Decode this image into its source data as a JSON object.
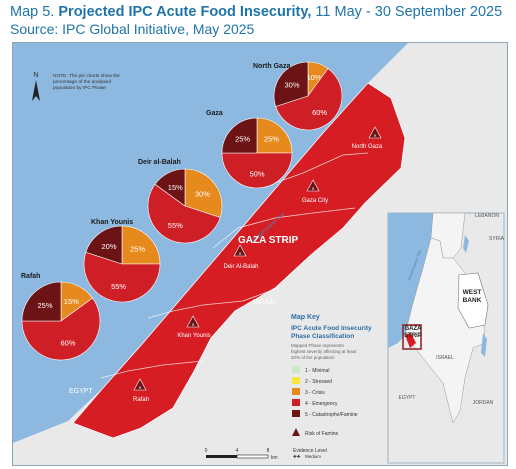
{
  "header": {
    "map_number": "Map 5.",
    "title": "Projected IPC Acute Food Insecurity,",
    "period": "11 May - 30 September 2025",
    "source": "Source: IPC Global Initiative, May 2025"
  },
  "north_label": "N",
  "note": [
    "NOTE: The pie charts show the",
    "percentage of the analysed",
    "population by IPC Phase"
  ],
  "colors": {
    "sea": "#8db9e0",
    "land": "#e9e9e9",
    "gaza": "#d71d24",
    "phase1": "#cde8c8",
    "phase2": "#f6e53a",
    "phase3": "#e68a1d",
    "phase4": "#cf1f26",
    "phase5": "#6b1315",
    "famine": "#6b1315"
  },
  "pies": [
    {
      "name": "North Gaza",
      "segments": [
        {
          "phase": "phase3",
          "pct": 10,
          "label": "10%"
        },
        {
          "phase": "phase4",
          "pct": 60,
          "label": "60%"
        },
        {
          "phase": "phase5",
          "pct": 30,
          "label": "30%"
        }
      ]
    },
    {
      "name": "Gaza",
      "segments": [
        {
          "phase": "phase3",
          "pct": 25,
          "label": "25%"
        },
        {
          "phase": "phase4",
          "pct": 50,
          "label": "50%"
        },
        {
          "phase": "phase5",
          "pct": 25,
          "label": "25%"
        }
      ]
    },
    {
      "name": "Deir al-Balah",
      "segments": [
        {
          "phase": "phase3",
          "pct": 30,
          "label": "30%"
        },
        {
          "phase": "phase4",
          "pct": 55,
          "label": "55%"
        },
        {
          "phase": "phase5",
          "pct": 15,
          "label": "15%"
        }
      ]
    },
    {
      "name": "Khan Younis",
      "segments": [
        {
          "phase": "phase3",
          "pct": 25,
          "label": "25%"
        },
        {
          "phase": "phase4",
          "pct": 55,
          "label": "55%"
        },
        {
          "phase": "phase5",
          "pct": 20,
          "label": "20%"
        }
      ]
    },
    {
      "name": "Rafah",
      "segments": [
        {
          "phase": "phase3",
          "pct": 15,
          "label": "15%"
        },
        {
          "phase": "phase4",
          "pct": 60,
          "label": "60%"
        },
        {
          "phase": "phase5",
          "pct": 25,
          "label": "25%"
        }
      ]
    }
  ],
  "famine_sites": [
    "North Gaza",
    "Gaza City",
    "Deir Al-Balah",
    "Khan Younis",
    "Rafah"
  ],
  "labels": {
    "gaza_strip": "GAZA STRIP",
    "israel": "ISRAEL",
    "egypt": "EGYPT",
    "med_sea": "Mediterranean Sea"
  },
  "legend": {
    "title": "Map Key",
    "subtitle1": "IPC Acute Food Insecurity",
    "subtitle2": "Phase Classification",
    "note": [
      "Mapped Phase represents",
      "highest severity affecting at least",
      "20% of the population"
    ],
    "items": [
      {
        "phase": "phase1",
        "label": "1 - Minimal"
      },
      {
        "phase": "phase2",
        "label": "2 - Stressed"
      },
      {
        "phase": "phase3",
        "label": "3 - Crisis"
      },
      {
        "phase": "phase4",
        "label": "4 - Emergency"
      },
      {
        "phase": "phase5",
        "label": "5 - Catastrophe/Famine"
      }
    ],
    "famine": "Risk of Famine",
    "evidence_title": "Evidence Level",
    "evidence_medium": "Medium"
  },
  "scale": {
    "ticks": [
      "0",
      "4",
      "8"
    ],
    "unit": "km"
  },
  "inset": {
    "lebanon": "LEBANON",
    "syria": "SYRIA",
    "west_bank": [
      "WEST",
      "BANK"
    ],
    "gaza_strip": [
      "GAZA",
      "STRIP"
    ],
    "israel": "ISRAEL",
    "egypt": "EGYPT",
    "jordan": "JORDAN",
    "med_sea": "Mediterranean Sea"
  }
}
